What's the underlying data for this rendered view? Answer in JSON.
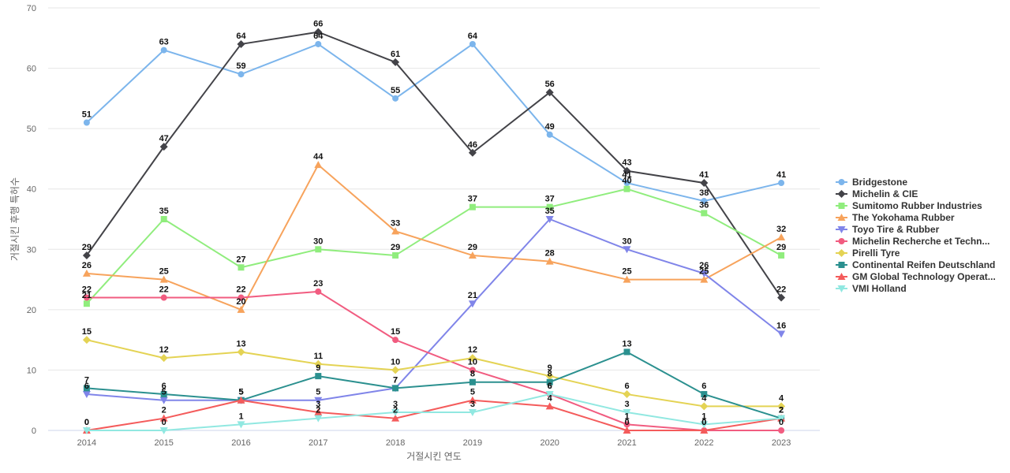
{
  "chart_data": {
    "type": "line",
    "title": "",
    "xlabel": "거절시킨 연도",
    "ylabel": "거절시킨 후행 특허수",
    "ylim": [
      0,
      70
    ],
    "yticks": [
      0,
      10,
      20,
      30,
      40,
      50,
      60,
      70
    ],
    "categories": [
      "2014",
      "2015",
      "2016",
      "2017",
      "2018",
      "2019",
      "2020",
      "2021",
      "2022",
      "2023"
    ],
    "legend_position": "right",
    "grid": true,
    "series": [
      {
        "name": "Bridgestone",
        "color": "#7cb5ec",
        "marker": "circle",
        "values": [
          51,
          63,
          59,
          64,
          55,
          64,
          49,
          41,
          38,
          41
        ]
      },
      {
        "name": "Michelin & CIE",
        "color": "#434348",
        "marker": "diamond",
        "values": [
          29,
          47,
          64,
          66,
          61,
          46,
          56,
          43,
          41,
          22
        ]
      },
      {
        "name": "Sumitomo Rubber Industries",
        "color": "#90ed7d",
        "marker": "square",
        "values": [
          21,
          35,
          27,
          30,
          29,
          37,
          37,
          40,
          36,
          29
        ]
      },
      {
        "name": "The Yokohama Rubber",
        "color": "#f7a35c",
        "marker": "triangle",
        "values": [
          26,
          25,
          20,
          44,
          33,
          29,
          28,
          25,
          25,
          32
        ]
      },
      {
        "name": "Toyo Tire & Rubber",
        "color": "#8085e9",
        "marker": "triangle-down",
        "values": [
          6,
          5,
          5,
          5,
          7,
          21,
          35,
          30,
          26,
          16
        ]
      },
      {
        "name": "Michelin Recherche et Techn...",
        "color": "#f15c80",
        "marker": "circle",
        "values": [
          22,
          22,
          22,
          23,
          15,
          10,
          6,
          1,
          0,
          0
        ]
      },
      {
        "name": "Pirelli Tyre",
        "color": "#e4d354",
        "marker": "diamond",
        "values": [
          15,
          12,
          13,
          11,
          10,
          12,
          9,
          6,
          4,
          4
        ]
      },
      {
        "name": "Continental Reifen Deutschland",
        "color": "#2b908f",
        "marker": "square",
        "values": [
          7,
          6,
          5,
          9,
          7,
          8,
          8,
          13,
          6,
          2
        ]
      },
      {
        "name": "GM Global Technology Operat...",
        "color": "#f45b5b",
        "marker": "triangle",
        "values": [
          0,
          2,
          5,
          3,
          2,
          5,
          4,
          0,
          0,
          2
        ]
      },
      {
        "name": "VMI Holland",
        "color": "#91e8e1",
        "marker": "triangle-down",
        "values": [
          0,
          0,
          1,
          2,
          3,
          3,
          6,
          3,
          1,
          2
        ]
      }
    ]
  }
}
